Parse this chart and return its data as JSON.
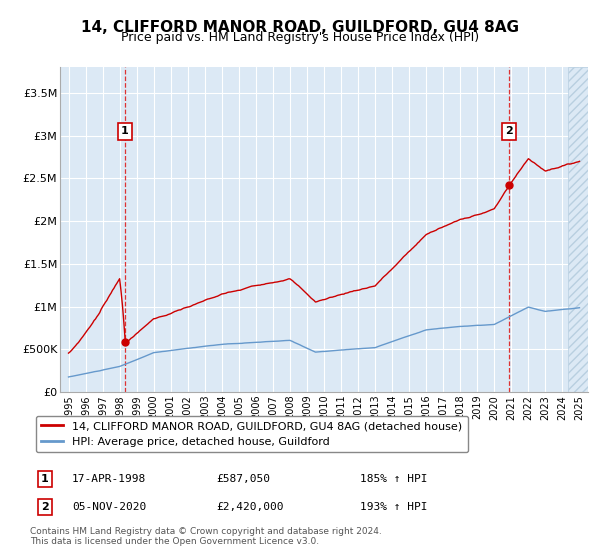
{
  "title": "14, CLIFFORD MANOR ROAD, GUILDFORD, GU4 8AG",
  "subtitle": "Price paid vs. HM Land Registry's House Price Index (HPI)",
  "plot_bg_color": "#dce9f5",
  "red_line_color": "#cc0000",
  "blue_line_color": "#6699cc",
  "grid_color": "#ffffff",
  "ann1_year": 1998.3,
  "ann1_date": "17-APR-1998",
  "ann1_price": "£587,050",
  "ann1_pct": "185% ↑ HPI",
  "ann2_year": 2020.85,
  "ann2_date": "05-NOV-2020",
  "ann2_price": "£2,420,000",
  "ann2_pct": "193% ↑ HPI",
  "legend_line1": "14, CLIFFORD MANOR ROAD, GUILDFORD, GU4 8AG (detached house)",
  "legend_line2": "HPI: Average price, detached house, Guildford",
  "footer": "Contains HM Land Registry data © Crown copyright and database right 2024.\nThis data is licensed under the Open Government Licence v3.0.",
  "ylabel_ticks": [
    "£0",
    "£500K",
    "£1M",
    "£1.5M",
    "£2M",
    "£2.5M",
    "£3M",
    "£3.5M"
  ],
  "ytick_values": [
    0,
    500000,
    1000000,
    1500000,
    2000000,
    2500000,
    3000000,
    3500000
  ],
  "ylim": [
    0,
    3800000
  ],
  "xlim_start": 1994.5,
  "xlim_end": 2025.5,
  "xticks": [
    1995,
    1996,
    1997,
    1998,
    1999,
    2000,
    2001,
    2002,
    2003,
    2004,
    2005,
    2006,
    2007,
    2008,
    2009,
    2010,
    2011,
    2012,
    2013,
    2014,
    2015,
    2016,
    2017,
    2018,
    2019,
    2020,
    2021,
    2022,
    2023,
    2024,
    2025
  ],
  "hatch_start": 2024.3,
  "dot_color": "#cc0000"
}
